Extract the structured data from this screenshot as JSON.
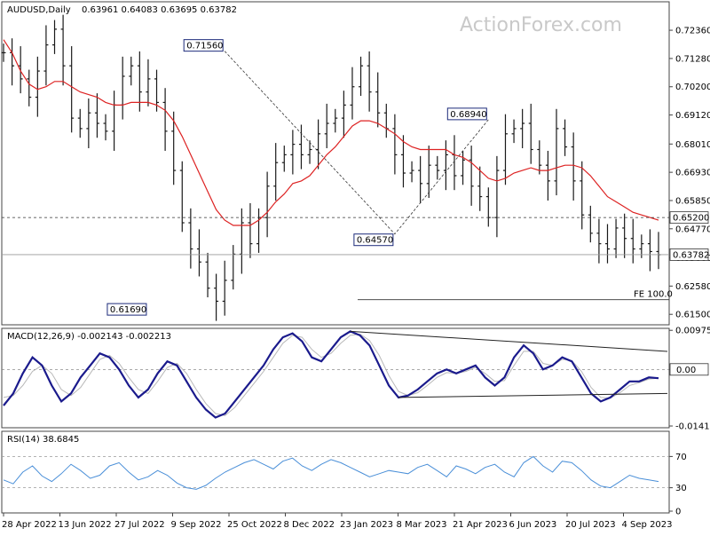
{
  "watermark": "ActionForex.com",
  "colors": {
    "price": "#1a1a1a",
    "ma": "#dd2222",
    "macd": "#1a1a8c",
    "signal": "#b8b8b8",
    "rsi": "#4a8fd8",
    "box_border": "#1c2a7a",
    "dashed": "#333333",
    "grid": "#bbbbbb"
  },
  "chart_data": [
    {
      "type": "candlestick",
      "title": "AUDUSD,Daily",
      "ohlc_text": "0.63961 0.64083 0.63695 0.63782",
      "ylim": [
        0.611,
        0.7338
      ],
      "y_ticks": [
        "0.72360",
        "0.71280",
        "0.70200",
        "0.69120",
        "0.68010",
        "0.66930",
        "0.65850",
        "0.64770",
        "0.63660",
        "0.62580",
        "0.61500"
      ],
      "x_ticks": [
        "28 Apr 2022",
        "13 Jun 2022",
        "27 Jul 2022",
        "9 Sep 2022",
        "25 Oct 2022",
        "8 Dec 2022",
        "23 Jan 2023",
        "8 Mar 2023",
        "21 Apr 2023",
        "6 Jun 2023",
        "20 Jul 2023",
        "4 Sep 2023"
      ],
      "closes": [
        0.715,
        0.71,
        0.705,
        0.698,
        0.708,
        0.718,
        0.724,
        0.71,
        0.69,
        0.686,
        0.692,
        0.688,
        0.685,
        0.695,
        0.706,
        0.71,
        0.7,
        0.705,
        0.696,
        0.685,
        0.67,
        0.65,
        0.64,
        0.635,
        0.625,
        0.62,
        0.628,
        0.638,
        0.65,
        0.642,
        0.652,
        0.664,
        0.673,
        0.676,
        0.68,
        0.676,
        0.678,
        0.684,
        0.688,
        0.69,
        0.695,
        0.702,
        0.71,
        0.7,
        0.692,
        0.686,
        0.676,
        0.669,
        0.67,
        0.665,
        0.672,
        0.67,
        0.676,
        0.668,
        0.674,
        0.664,
        0.66,
        0.652,
        0.67,
        0.684,
        0.686,
        0.688,
        0.678,
        0.672,
        0.666,
        0.686,
        0.679,
        0.666,
        0.653,
        0.646,
        0.642,
        0.64,
        0.648,
        0.644,
        0.64,
        0.642,
        0.639,
        0.6378
      ],
      "ma": [
        0.72,
        0.715,
        0.708,
        0.703,
        0.701,
        0.702,
        0.704,
        0.704,
        0.702,
        0.7,
        0.699,
        0.698,
        0.696,
        0.695,
        0.695,
        0.696,
        0.696,
        0.696,
        0.695,
        0.693,
        0.689,
        0.683,
        0.676,
        0.669,
        0.662,
        0.655,
        0.651,
        0.649,
        0.649,
        0.649,
        0.651,
        0.654,
        0.658,
        0.661,
        0.665,
        0.666,
        0.668,
        0.672,
        0.676,
        0.679,
        0.683,
        0.687,
        0.689,
        0.689,
        0.688,
        0.686,
        0.684,
        0.681,
        0.679,
        0.678,
        0.678,
        0.678,
        0.678,
        0.676,
        0.675,
        0.673,
        0.67,
        0.667,
        0.666,
        0.667,
        0.669,
        0.67,
        0.671,
        0.67,
        0.67,
        0.671,
        0.672,
        0.672,
        0.671,
        0.668,
        0.664,
        0.66,
        0.658,
        0.656,
        0.654,
        0.653,
        0.652,
        0.651
      ],
      "labels": [
        {
          "text": "0.71560",
          "x": 26,
          "y": 0.7156
        },
        {
          "text": "0.68940",
          "x": 57,
          "y": 0.6894
        },
        {
          "text": "0.64570",
          "x": 46,
          "y": 0.6457
        },
        {
          "text": "0.61690",
          "x": 17,
          "y": 0.6169
        }
      ],
      "hlines": [
        {
          "value": 0.652,
          "label": "0.65200",
          "style": "dashed"
        },
        {
          "value": 0.63782,
          "label": "0.63782",
          "style": "solid"
        }
      ],
      "fe_label": "FE 100.0",
      "fe_value": 0.6206
    },
    {
      "type": "line",
      "title": "MACD(12,26,9) -0.002143 -0.002213",
      "ylim": [
        -0.0141,
        0.0098
      ],
      "y_ticks": [
        "0.009751",
        "0.00",
        "-0.014107"
      ],
      "current_tag": "0.00",
      "macd": [
        -0.009,
        -0.006,
        -0.001,
        0.003,
        0.001,
        -0.004,
        -0.008,
        -0.006,
        -0.002,
        0.001,
        0.004,
        0.003,
        0.0,
        -0.004,
        -0.007,
        -0.005,
        -0.001,
        0.002,
        0.001,
        -0.003,
        -0.007,
        -0.01,
        -0.012,
        -0.011,
        -0.008,
        -0.005,
        -0.002,
        0.001,
        0.005,
        0.008,
        0.009,
        0.007,
        0.003,
        0.002,
        0.005,
        0.008,
        0.0095,
        0.0085,
        0.006,
        0.001,
        -0.004,
        -0.007,
        -0.0065,
        -0.005,
        -0.003,
        -0.001,
        0.0,
        -0.001,
        0.0,
        0.001,
        -0.002,
        -0.004,
        -0.002,
        0.003,
        0.006,
        0.004,
        0.0,
        0.001,
        0.003,
        0.002,
        -0.002,
        -0.006,
        -0.008,
        -0.007,
        -0.005,
        -0.003,
        -0.003,
        -0.002,
        -0.0022
      ],
      "signal": [
        -0.007,
        -0.0065,
        -0.004,
        -0.0005,
        0.001,
        -0.001,
        -0.005,
        -0.0065,
        -0.0045,
        -0.001,
        0.0025,
        0.0035,
        0.0015,
        -0.002,
        -0.005,
        -0.006,
        -0.003,
        0.0005,
        0.0015,
        -0.001,
        -0.005,
        -0.0085,
        -0.011,
        -0.0115,
        -0.0095,
        -0.0065,
        -0.0035,
        -0.0005,
        0.003,
        0.0065,
        0.0085,
        0.008,
        0.005,
        0.003,
        0.004,
        0.0065,
        0.0085,
        0.0088,
        0.0072,
        0.0035,
        -0.0015,
        -0.0055,
        -0.0065,
        -0.0058,
        -0.004,
        -0.002,
        -0.0008,
        -0.001,
        -0.0005,
        0.0005,
        -0.001,
        -0.003,
        -0.0028,
        0.001,
        0.0045,
        0.0045,
        0.0015,
        0.001,
        0.0025,
        0.0022,
        -0.0005,
        -0.0045,
        -0.007,
        -0.0072,
        -0.0058,
        -0.004,
        -0.0033,
        -0.0024,
        -0.0022
      ]
    },
    {
      "type": "line",
      "title": "RSI(14) 38.6845",
      "ylim": [
        0,
        100
      ],
      "y_ticks": [
        "70",
        "30",
        "0"
      ],
      "levels": [
        70,
        30
      ],
      "rsi": [
        40,
        35,
        50,
        58,
        45,
        38,
        48,
        60,
        52,
        42,
        46,
        58,
        62,
        50,
        40,
        44,
        52,
        46,
        36,
        30,
        28,
        33,
        42,
        50,
        56,
        62,
        66,
        60,
        54,
        64,
        68,
        58,
        52,
        60,
        66,
        62,
        56,
        50,
        44,
        48,
        52,
        50,
        48,
        56,
        60,
        52,
        44,
        58,
        54,
        48,
        56,
        60,
        50,
        44,
        62,
        70,
        58,
        50,
        64,
        62,
        52,
        40,
        32,
        30,
        38,
        46,
        42,
        40,
        38
      ]
    }
  ]
}
